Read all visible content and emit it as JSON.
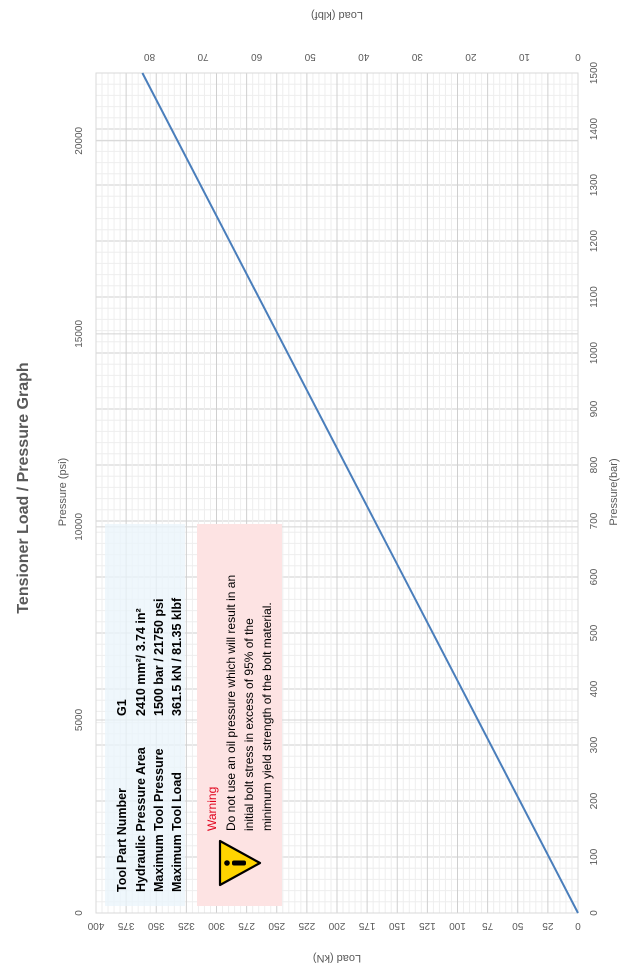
{
  "chart_data": {
    "type": "line",
    "title": "Tensioner Load / Pressure Graph",
    "x_label": "Pressure(bar)",
    "x_label_secondary": "Pressure (psi)",
    "y_label": "Load (kN)",
    "y_label_secondary": "Load (klbf)",
    "x_range": [
      0,
      1500
    ],
    "x_ticks": [
      "0",
      "100",
      "200",
      "300",
      "400",
      "500",
      "600",
      "700",
      "800",
      "900",
      "1000",
      "1100",
      "1200",
      "1300",
      "1400",
      "1500"
    ],
    "x_secondary_range": [
      0,
      21756
    ],
    "x_secondary_ticks": [
      "0",
      "5000",
      "10000",
      "15000",
      "20000"
    ],
    "y_range": [
      0,
      400
    ],
    "y_ticks": [
      "0",
      "25",
      "50",
      "75",
      "100",
      "125",
      "150",
      "175",
      "200",
      "225",
      "250",
      "275",
      "300",
      "325",
      "350",
      "375",
      "400"
    ],
    "y_secondary_range": [
      0,
      90
    ],
    "y_secondary_ticks": [
      "0",
      "10",
      "20",
      "30",
      "40",
      "50",
      "60",
      "70",
      "80"
    ],
    "grid": true,
    "orientation": "rotated 90 degrees",
    "series": [
      {
        "points": [
          [
            0,
            0
          ],
          [
            1500,
            361.5
          ]
        ],
        "color": "#4a7ebb"
      }
    ]
  },
  "info_box": {
    "rows": [
      {
        "label": "Tool Part Number",
        "value": "G1"
      },
      {
        "label": "Hydraulic Pressure Area",
        "value": "2410  mm²/ 3.74  in²"
      },
      {
        "label": "Maximum Tool Pressure",
        "value": "1500  bar / 21750  psi"
      },
      {
        "label": "Maximum Tool Load",
        "value": "361.5  kN / 81.35  klbf"
      }
    ]
  },
  "warning_box": {
    "title": "Warning",
    "lines": [
      "Do not use an oil pressure which will result in an",
      "initial bolt stress in excess of 95% of the",
      "minimum yield strength of the bolt material."
    ]
  }
}
